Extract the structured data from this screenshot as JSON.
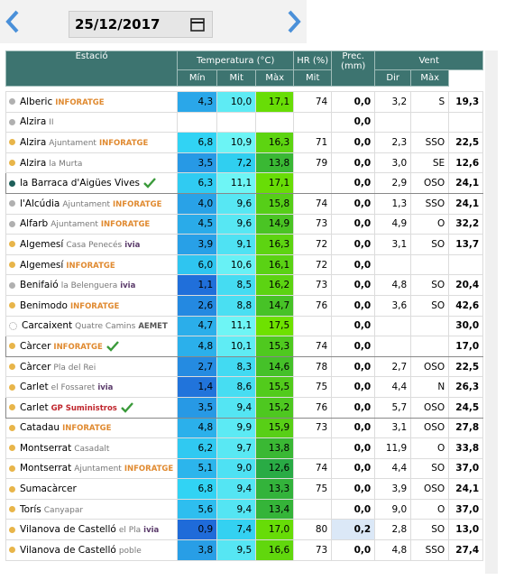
{
  "date": "25/12/2017",
  "table": {
    "headers": {
      "station": "Estació",
      "temperature": "Temperatura (°C)",
      "humidity": "HR (%)",
      "precipitation": "Prec. (mm)",
      "wind": "Vent",
      "sub": [
        "Mín",
        "Mit",
        "Màx",
        "Mit",
        "Mit",
        "Dir",
        "Màx"
      ]
    },
    "rows": [
      {
        "name": "Alberic",
        "tag": "INFORATGE",
        "dot": "#b0b0b0",
        "cells": [
          "4,3",
          "10,0",
          "17,1",
          "74",
          "0,0",
          "3,2",
          "S",
          "19,3"
        ]
      },
      {
        "name": "Alzira",
        "sub": "II",
        "dot": "#b0b0b0",
        "cells": [
          null,
          null,
          null,
          null,
          "0,0",
          null,
          null,
          null
        ]
      },
      {
        "name": "Alzira",
        "sub": "Ajuntament",
        "tag": "INFORATGE",
        "dot": "#e8b54a",
        "cells": [
          "6,8",
          "10,9",
          "16,3",
          "71",
          "0,0",
          "2,3",
          "SSO",
          "22,5"
        ]
      },
      {
        "name": "Alzira",
        "sub": "la Murta",
        "dot": "#e8b54a",
        "cells": [
          "3,5",
          "7,2",
          "13,8",
          "79",
          "0,0",
          "3,0",
          "SE",
          "12,6"
        ]
      },
      {
        "name": "la Barraca d'Aigües Vives",
        "verified": true,
        "dot": "#1f5f5a",
        "cells": [
          "6,3",
          "11,1",
          "17,1",
          null,
          "0,0",
          "2,9",
          "OSO",
          "24,1"
        ]
      },
      {
        "name": "l'Alcúdia",
        "sub": "Ajuntament",
        "tag": "INFORATGE",
        "dot": "#b0b0b0",
        "cells": [
          "4,0",
          "9,6",
          "15,8",
          "74",
          "0,0",
          "1,3",
          "SSO",
          "24,1"
        ]
      },
      {
        "name": "Alfarb",
        "sub": "Ajuntament",
        "tag": "INFORATGE",
        "dot": "#b0b0b0",
        "cells": [
          "4,5",
          "9,6",
          "14,9",
          "73",
          "0,0",
          "4,9",
          "O",
          "32,2"
        ]
      },
      {
        "name": "Algemesí",
        "sub": "Casa Penecés",
        "tag": "ivia",
        "dot": "#e8b54a",
        "cells": [
          "3,9",
          "9,1",
          "16,3",
          "72",
          "0,0",
          "3,1",
          "SO",
          "13,7"
        ]
      },
      {
        "name": "Algemesí",
        "tag": "INFORATGE",
        "dot": "#e8b54a",
        "cells": [
          "6,0",
          "10,6",
          "16,1",
          "72",
          "0,0",
          null,
          null,
          null
        ]
      },
      {
        "name": "Benifaió",
        "sub": "la Belenguera",
        "tag": "ivia",
        "dot": "#b0b0b0",
        "cells": [
          "1,1",
          "8,5",
          "16,2",
          "73",
          "0,0",
          "4,8",
          "SO",
          "20,4"
        ]
      },
      {
        "name": "Benimodo",
        "tag": "INFORATGE",
        "dot": "#e8b54a",
        "cells": [
          "2,6",
          "8,8",
          "14,7",
          "76",
          "0,0",
          "3,6",
          "SO",
          "42,6"
        ]
      },
      {
        "name": "Carcaixent",
        "sub": "Quatre Camins",
        "tag": "AEMET",
        "dot": "outline",
        "cells": [
          "4,7",
          "11,1",
          "17,5",
          null,
          "0,0",
          null,
          null,
          "30,0"
        ]
      },
      {
        "name": "Càrcer",
        "tag": "INFORATGE",
        "verified": true,
        "dot": "#e8b54a",
        "cells": [
          "4,8",
          "10,1",
          "15,3",
          "74",
          "0,0",
          null,
          null,
          "17,0"
        ]
      },
      {
        "name": "Càrcer",
        "sub": "Pla del Rei",
        "dot": "#e8b54a",
        "cells": [
          "2,7",
          "8,3",
          "14,6",
          "78",
          "0,0",
          "2,7",
          "OSO",
          "22,5"
        ]
      },
      {
        "name": "Carlet",
        "sub": "el Fossaret",
        "tag": "ivia",
        "dot": "#e8b54a",
        "cells": [
          "1,4",
          "8,6",
          "15,5",
          "75",
          "0,0",
          "4,4",
          "N",
          "26,3"
        ]
      },
      {
        "name": "Carlet",
        "tag": "GP Suministros",
        "verified": true,
        "dot": "#e8b54a",
        "cells": [
          "3,5",
          "9,4",
          "15,2",
          "76",
          "0,0",
          "5,7",
          "OSO",
          "24,5"
        ]
      },
      {
        "name": "Catadau",
        "tag": "INFORATGE",
        "dot": "#e8b54a",
        "cells": [
          "4,8",
          "9,9",
          "15,9",
          "73",
          "0,0",
          "3,1",
          "OSO",
          "27,8"
        ]
      },
      {
        "name": "Montserrat",
        "sub": "Casadalt",
        "dot": "#e8b54a",
        "cells": [
          "6,2",
          "9,7",
          "13,8",
          null,
          "0,0",
          "11,9",
          "O",
          "33,8"
        ]
      },
      {
        "name": "Montserrat",
        "sub": "Ajuntament",
        "tag": "INFORATGE",
        "dot": "#e8b54a",
        "cells": [
          "5,1",
          "9,0",
          "12,6",
          "74",
          "0,0",
          "4,4",
          "SO",
          "37,0"
        ]
      },
      {
        "name": "Sumacàrcer",
        "dot": "#e8b54a",
        "cells": [
          "6,8",
          "9,4",
          "13,3",
          "75",
          "0,0",
          "3,9",
          "OSO",
          "24,1"
        ]
      },
      {
        "name": "Torís",
        "sub": "Canyapar",
        "dot": "#e8b54a",
        "cells": [
          "5,6",
          "9,4",
          "13,4",
          null,
          "0,0",
          "9,0",
          "O",
          "37,0"
        ]
      },
      {
        "name": "Vilanova de Castelló",
        "sub": "el Pla",
        "tag": "ivia",
        "dot": "#e8b54a",
        "cells": [
          "0,9",
          "7,4",
          "17,0",
          "80",
          "0,2",
          "2,8",
          "SO",
          "13,0"
        ]
      },
      {
        "name": "Vilanova de Castelló",
        "sub": "poble",
        "dot": "#e8b54a",
        "cells": [
          "3,8",
          "9,5",
          "16,6",
          "73",
          "0,0",
          "4,8",
          "SSO",
          "27,4"
        ]
      }
    ]
  }
}
